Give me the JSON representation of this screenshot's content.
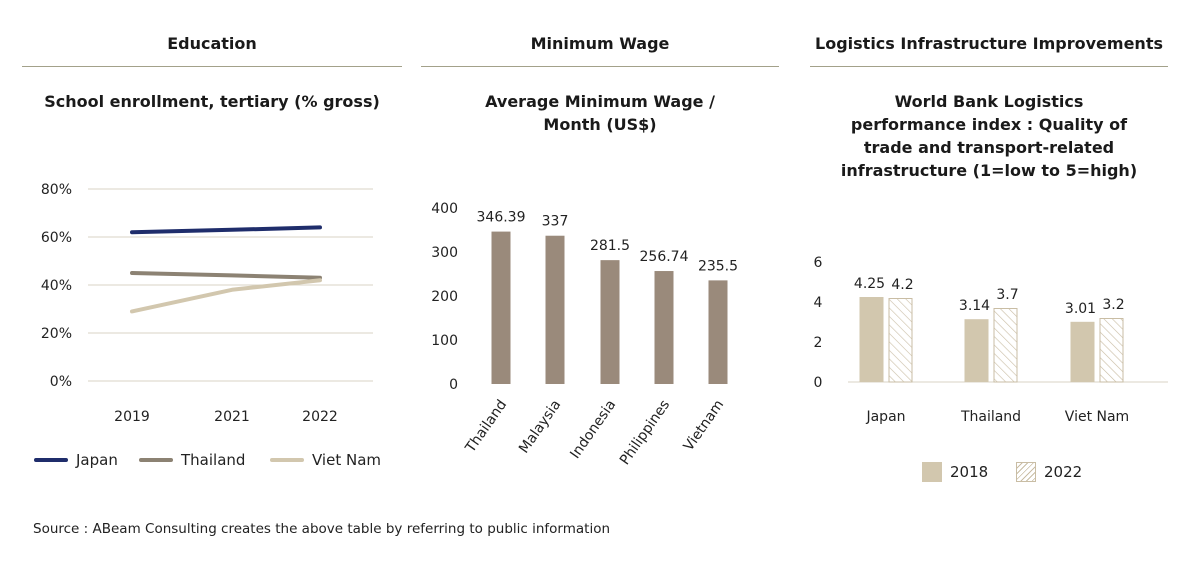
{
  "sections": {
    "education": "Education",
    "wage": "Minimum Wage",
    "logistics": "Logistics Infrastructure Improvements"
  },
  "source": "Source : ABeam Consulting creates the above table by referring to public information",
  "colors": {
    "japan": "#1f2d6b",
    "thailand": "#8c8273",
    "vietnam": "#d2c7ae",
    "wage_bar": "#9a8a7b",
    "bar_2018": "#d2c7ae",
    "bar_2022_stroke": "#c9bda4",
    "grid": "#d8d3c4",
    "rule": "#a3a18a"
  },
  "chart_data": [
    {
      "type": "line",
      "title": "School enrollment, tertiary (% gross)",
      "x": [
        "2019",
        "2021",
        "2022"
      ],
      "ylim": [
        0,
        80
      ],
      "yticks": [
        "0%",
        "20%",
        "40%",
        "60%",
        "80%"
      ],
      "grid": true,
      "legend_placement": "bottom",
      "series": [
        {
          "name": "Japan",
          "values": [
            62,
            63,
            64
          ]
        },
        {
          "name": "Thailand",
          "values": [
            45,
            44,
            43
          ]
        },
        {
          "name": "Viet Nam",
          "values": [
            29,
            38,
            42
          ]
        }
      ]
    },
    {
      "type": "bar",
      "title": "Average Minimum Wage /\nMonth (US$)",
      "categories": [
        "Thailand",
        "Malaysia",
        "Indonesia",
        "Philippines",
        "Vietnam"
      ],
      "values": [
        346.39,
        337,
        281.5,
        256.74,
        235.5
      ],
      "value_labels": [
        "346.39",
        "337",
        "281.5",
        "256.74",
        "235.5"
      ],
      "ylim": [
        0,
        400
      ],
      "yticks": [
        "0",
        "100",
        "200",
        "300",
        "400"
      ],
      "grid": false
    },
    {
      "type": "bar",
      "title": "World Bank Logistics\nperformance index : Quality of\ntrade and transport-related\ninfrastructure (1=low to 5=high)",
      "categories": [
        "Japan",
        "Thailand",
        "Viet Nam"
      ],
      "ylim": [
        0,
        6
      ],
      "yticks": [
        "0",
        "2",
        "4",
        "6"
      ],
      "grid": false,
      "legend_placement": "bottom",
      "series": [
        {
          "name": "2018",
          "values": [
            4.25,
            3.14,
            3.01
          ],
          "value_labels": [
            "4.25",
            "3.14",
            "3.01"
          ]
        },
        {
          "name": "2022",
          "values": [
            4.2,
            3.7,
            3.2
          ],
          "value_labels": [
            "4.2",
            "3.7",
            "3.2"
          ]
        }
      ]
    }
  ]
}
